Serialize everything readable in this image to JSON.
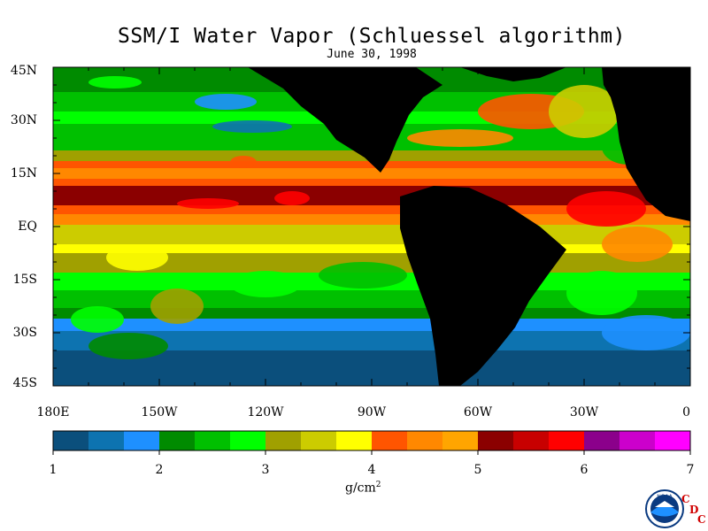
{
  "title": "SSM/I Water Vapor (Schluessel algorithm)",
  "date": "June 30, 1998",
  "lat_labels": [
    "45N",
    "30N",
    "15N",
    "EQ",
    "15S",
    "30S",
    "45S"
  ],
  "lon_labels": [
    "180E",
    "150W",
    "120W",
    "90W",
    "60W",
    "30W",
    "0"
  ],
  "colorbar": {
    "colors": [
      "#0b4f7c",
      "#0d73b0",
      "#1e90ff",
      "#008b00",
      "#00c000",
      "#00ff00",
      "#a0a000",
      "#cccc00",
      "#ffff00",
      "#ff5500",
      "#ff8800",
      "#ffa500",
      "#8b0000",
      "#c80000",
      "#ff0000",
      "#8b008b",
      "#cc00cc",
      "#ff00ff"
    ],
    "tick_labels": [
      "1",
      "2",
      "3",
      "4",
      "5",
      "6",
      "7"
    ],
    "units": "g/cm",
    "units_sup": "2"
  },
  "logo": {
    "text": "NOAA",
    "cdc": [
      "C",
      "D",
      "C"
    ]
  }
}
